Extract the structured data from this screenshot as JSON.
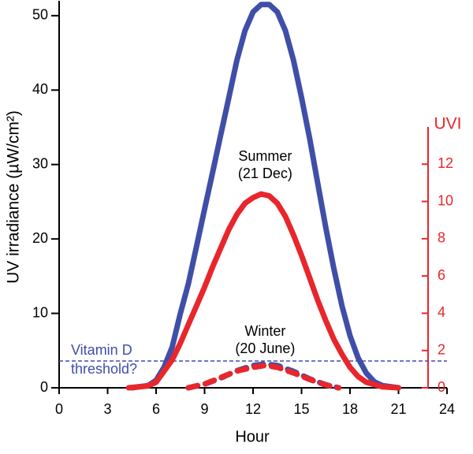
{
  "chart_data": {
    "type": "line",
    "xlabel": "Hour",
    "ylabel": "UV irradiance (µW/cm²)",
    "y2label": "UVI",
    "xlim": [
      0,
      24
    ],
    "xticks": [
      0,
      3,
      6,
      9,
      12,
      15,
      18,
      21,
      24
    ],
    "ylim": [
      0,
      52
    ],
    "yticks": [
      0,
      10,
      20,
      30,
      40,
      50
    ],
    "y2lim": [
      0,
      14
    ],
    "y2ticks": [
      0,
      2,
      4,
      6,
      8,
      10,
      12
    ],
    "series": [
      {
        "color": "#3f4fa8",
        "dashed": false,
        "x": [
          4.5,
          5.5,
          6,
          6.5,
          7,
          7.5,
          8,
          8.5,
          9,
          9.5,
          10,
          10.5,
          11,
          11.5,
          12,
          12.5,
          13,
          13.5,
          14,
          14.5,
          15,
          15.5,
          16,
          16.5,
          17,
          17.5,
          18,
          18.5,
          19,
          19.5,
          20,
          21
        ],
        "values": [
          0,
          0.3,
          1,
          2.8,
          5.5,
          10,
          14,
          19,
          24,
          29,
          34,
          39,
          44,
          48,
          50.5,
          51.5,
          51.5,
          50.5,
          48,
          44,
          39,
          33.5,
          27.5,
          21.5,
          16,
          11,
          7,
          4,
          2,
          0.8,
          0.3,
          0
        ]
      },
      {
        "color": "#e8262b",
        "dashed": false,
        "axis": "y2",
        "x": [
          4.3,
          5.5,
          6,
          6.5,
          7,
          7.5,
          8,
          8.5,
          9,
          9.5,
          10,
          10.5,
          11,
          11.5,
          12,
          12.5,
          13,
          13.5,
          14,
          14.5,
          15,
          15.5,
          16,
          16.5,
          17,
          17.5,
          18,
          18.5,
          19,
          20,
          21
        ],
        "values": [
          0,
          0.1,
          0.3,
          0.9,
          1.5,
          2.4,
          3.4,
          4.4,
          5.4,
          6.5,
          7.5,
          8.5,
          9.3,
          9.9,
          10.2,
          10.4,
          10.3,
          9.9,
          9.2,
          8.2,
          7.1,
          5.9,
          4.7,
          3.6,
          2.6,
          1.8,
          1.1,
          0.6,
          0.3,
          0.05,
          0
        ]
      },
      {
        "color": "#3f4fa8",
        "dashed": true,
        "x": [
          8,
          9,
          10,
          11,
          12,
          12.75,
          13.5,
          14.5,
          15.5,
          16.5,
          17.3
        ],
        "values": [
          0,
          0.5,
          1.3,
          2.3,
          3,
          3.2,
          3,
          2.2,
          1.2,
          0.4,
          0
        ]
      },
      {
        "color": "#e8262b",
        "dashed": true,
        "axis": "y2",
        "x": [
          8,
          9,
          10,
          11,
          12,
          12.75,
          13.5,
          14.5,
          15.5,
          16.5,
          17.3
        ],
        "values": [
          0,
          0.2,
          0.55,
          0.9,
          1.1,
          1.2,
          1.1,
          0.8,
          0.45,
          0.15,
          0
        ]
      }
    ],
    "threshold": {
      "value": 3.6,
      "color": "#3f4fa8",
      "label": [
        "Vitamin D",
        "threshold?"
      ]
    },
    "annotations": [
      {
        "lines": [
          "Summer",
          "(21 Dec)"
        ],
        "x": 12.75,
        "y": 31
      },
      {
        "lines": [
          "Winter",
          "(20 June)"
        ],
        "x": 12.75,
        "y": 7.5
      }
    ]
  }
}
